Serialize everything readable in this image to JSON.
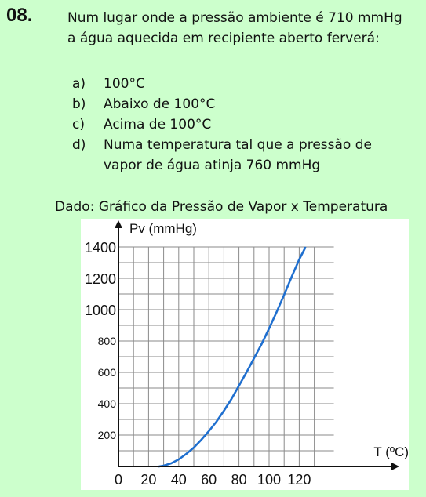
{
  "question": {
    "number": "08.",
    "stem_line1": "Num lugar onde a pressão ambiente é 710 mmHg",
    "stem_line2": "a água aquecida em recipiente aberto ferverá:"
  },
  "options": [
    {
      "letter": "a)",
      "line1": "100°C",
      "line2": ""
    },
    {
      "letter": "b)",
      "line1": "Abaixo de 100°C",
      "line2": ""
    },
    {
      "letter": "c)",
      "line1": "Acima de 100°C",
      "line2": ""
    },
    {
      "letter": "d)",
      "line1": "Numa temperatura tal que a pressão de",
      "line2": "vapor de água atinja 760 mmHg"
    }
  ],
  "caption": "Dado: Gráfico da Pressão de Vapor x Temperatura",
  "chart_data": {
    "type": "line",
    "title": "",
    "ylabel": "Pv (mmHg)",
    "xlabel": "T (ºC)",
    "xlim": [
      0,
      130
    ],
    "ylim": [
      0,
      1400
    ],
    "x_ticks": [
      0,
      20,
      40,
      60,
      80,
      100,
      120
    ],
    "y_ticks": [
      200,
      400,
      600,
      800,
      1000,
      1200,
      1400
    ],
    "grid": true,
    "series": [
      {
        "name": "",
        "color": "#1f6fcf",
        "x": [
          27,
          30,
          35,
          40,
          45,
          50,
          55,
          60,
          65,
          70,
          75,
          80,
          85,
          90,
          95,
          100,
          105,
          110,
          115,
          120,
          124
        ],
        "y": [
          0,
          5,
          20,
          45,
          80,
          120,
          170,
          225,
          285,
          355,
          430,
          515,
          600,
          690,
          780,
          880,
          985,
          1095,
          1210,
          1320,
          1395
        ]
      }
    ]
  }
}
